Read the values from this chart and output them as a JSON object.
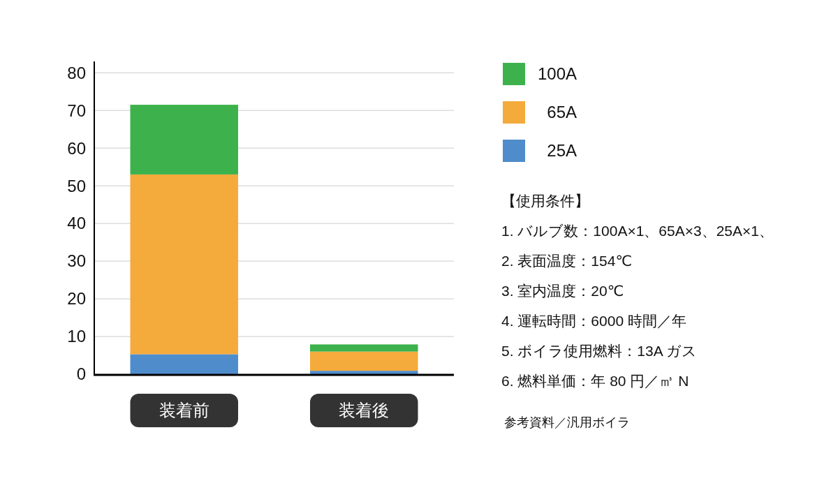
{
  "chart_data": {
    "type": "bar",
    "stacked": true,
    "categories": [
      "装着前",
      "装着後"
    ],
    "series": [
      {
        "name": "25A",
        "color": "#4f8ccc",
        "values": [
          5.3,
          0.9
        ]
      },
      {
        "name": "65A",
        "color": "#f5aa3c",
        "values": [
          47.7,
          5.1
        ]
      },
      {
        "name": "100A",
        "color": "#3db24c",
        "values": [
          18.5,
          1.9
        ]
      }
    ],
    "ylim": [
      0,
      83
    ],
    "yticks": [
      0,
      10,
      20,
      30,
      40,
      50,
      60,
      70,
      80
    ],
    "grid": "y",
    "legend": "right",
    "annotations": [
      "【使用条件】",
      "1. バルブ数：100A×1、65A×3、25A×1、",
      "2. 表面温度：154℃",
      "3. 室内温度：20℃",
      "4. 運転時間：6000 時間／年",
      "5. ボイラ使用燃料：13A ガス",
      "6. 燃料単価：年 80 円／㎥ N",
      "参考資料／汎用ボイラ"
    ]
  }
}
